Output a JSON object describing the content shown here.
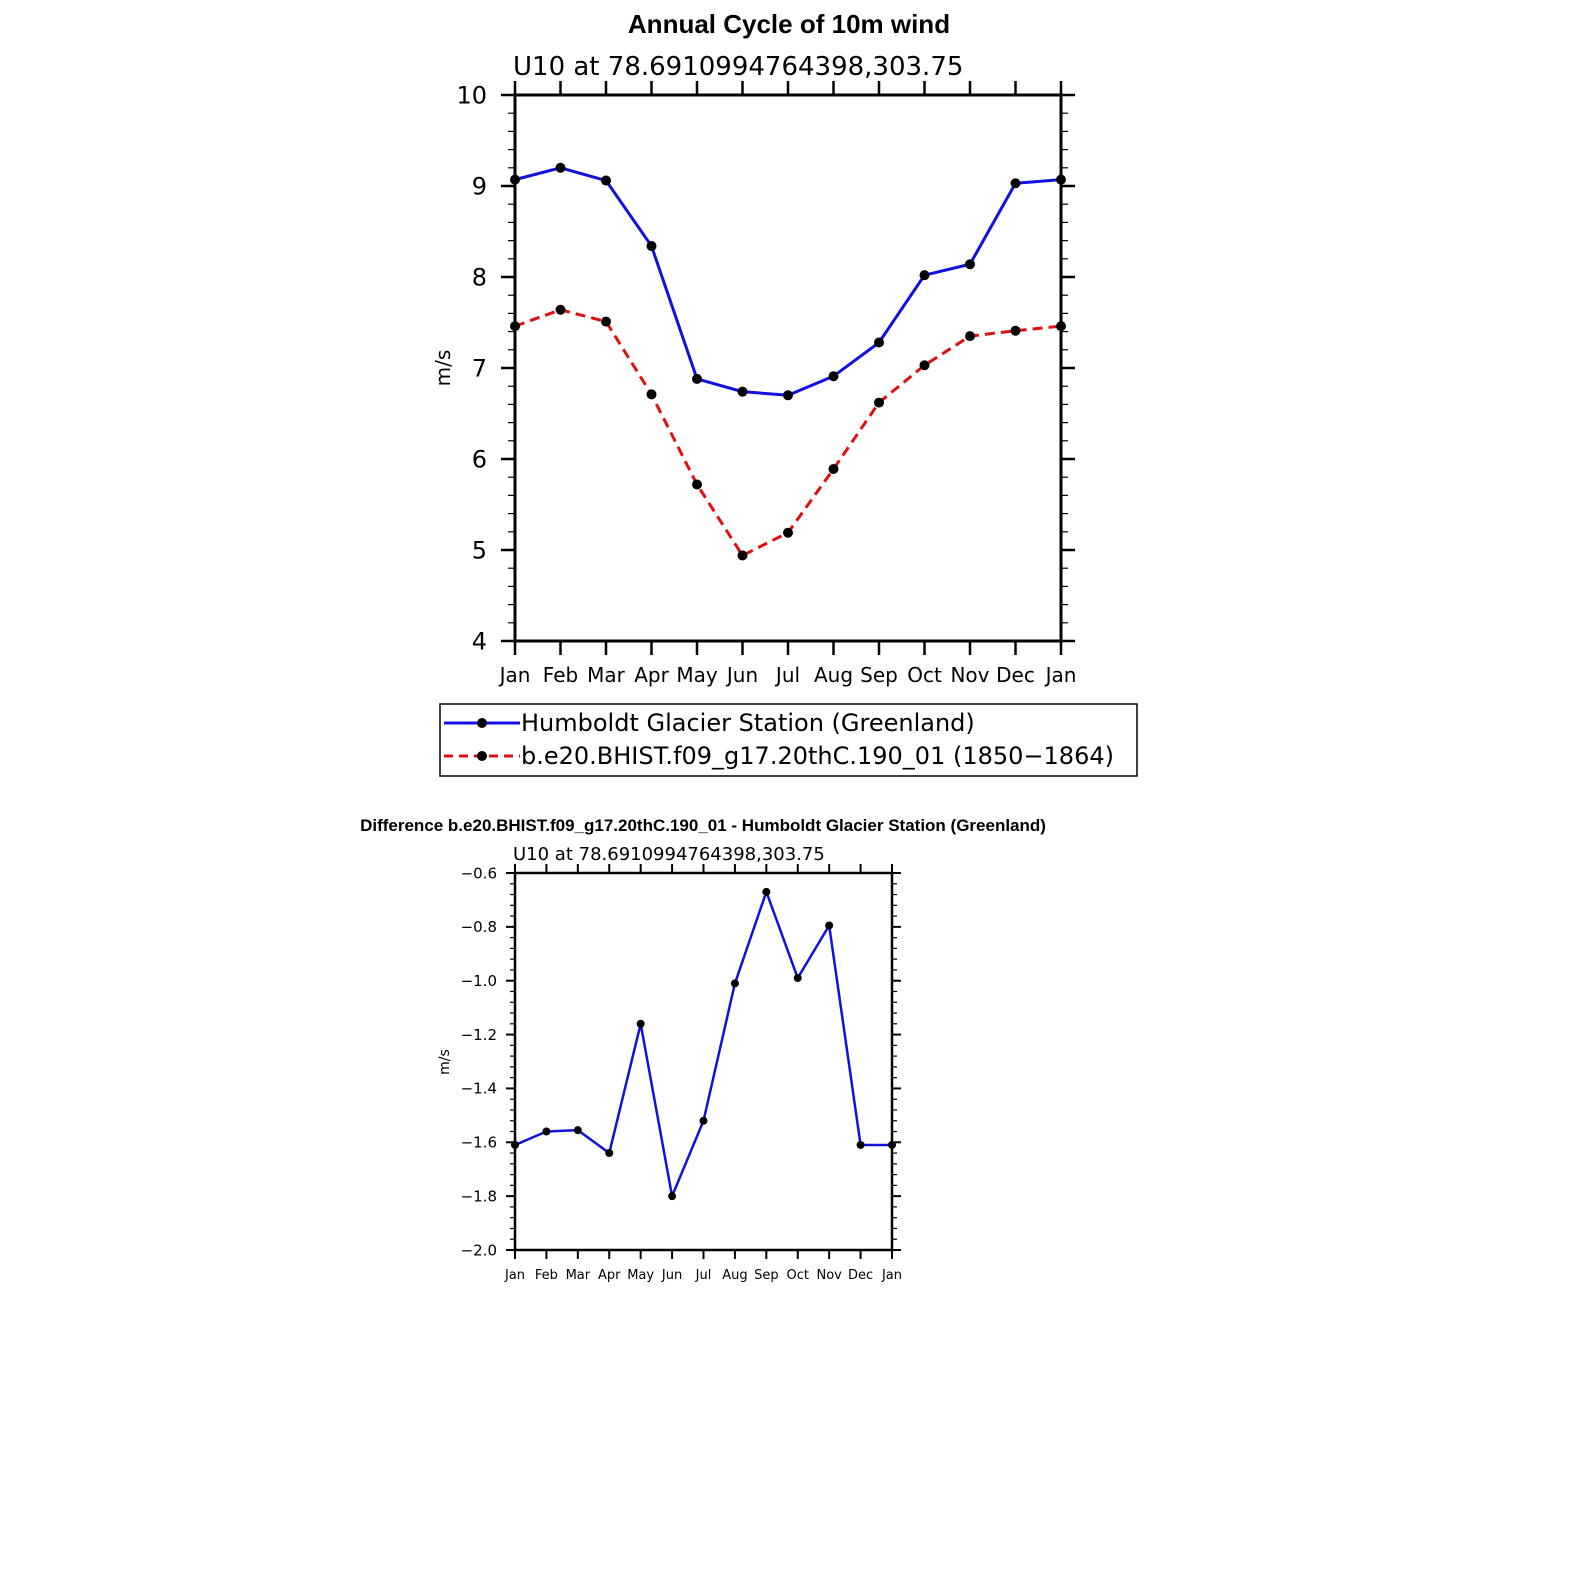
{
  "chart_data": [
    {
      "type": "line",
      "title": "Annual Cycle of 10m wind",
      "subtitle": "U10 at 78.6910994764398,303.75",
      "ylabel": "m/s",
      "xlabel": "",
      "categories": [
        "Jan",
        "Feb",
        "Mar",
        "Apr",
        "May",
        "Jun",
        "Jul",
        "Aug",
        "Sep",
        "Oct",
        "Nov",
        "Dec",
        "Jan"
      ],
      "ylim": [
        4,
        10
      ],
      "yticks": [
        "4",
        "5",
        "6",
        "7",
        "8",
        "9",
        "10"
      ],
      "grid": false,
      "legend": "bottom",
      "series": [
        {
          "name": "Humboldt Glacier Station (Greenland)",
          "color": "#1010e0",
          "dash": "solid",
          "values": [
            9.07,
            9.2,
            9.06,
            8.34,
            6.88,
            6.74,
            6.7,
            6.91,
            7.28,
            8.02,
            8.14,
            9.03,
            9.07
          ]
        },
        {
          "name": "b.e20.BHIST.f09_g17.20thC.190_01 (1850−1864)",
          "color": "#e01010",
          "dash": "dashed",
          "values": [
            7.46,
            7.64,
            7.51,
            6.71,
            5.72,
            4.94,
            5.19,
            5.89,
            6.62,
            7.03,
            7.35,
            7.41,
            7.46
          ]
        }
      ]
    },
    {
      "type": "line",
      "title": "Difference b.e20.BHIST.f09_g17.20thC.190_01 - Humboldt Glacier Station (Greenland)",
      "subtitle": "U10 at 78.6910994764398,303.75",
      "ylabel": "m/s",
      "xlabel": "",
      "categories": [
        "Jan",
        "Feb",
        "Mar",
        "Apr",
        "May",
        "Jun",
        "Jul",
        "Aug",
        "Sep",
        "Oct",
        "Nov",
        "Dec",
        "Jan"
      ],
      "ylim": [
        -2.0,
        -0.6
      ],
      "yticks": [
        "−2.0",
        "−1.8",
        "−1.6",
        "−1.4",
        "−1.2",
        "−1.0",
        "−0.8",
        "−0.6"
      ],
      "grid": false,
      "series": [
        {
          "color": "#1010e0",
          "dash": "solid",
          "values": [
            -1.61,
            -1.56,
            -1.555,
            -1.64,
            -1.16,
            -1.8,
            -1.52,
            -1.01,
            -0.67,
            -0.99,
            -0.795,
            -1.61,
            -1.61
          ]
        }
      ]
    }
  ]
}
